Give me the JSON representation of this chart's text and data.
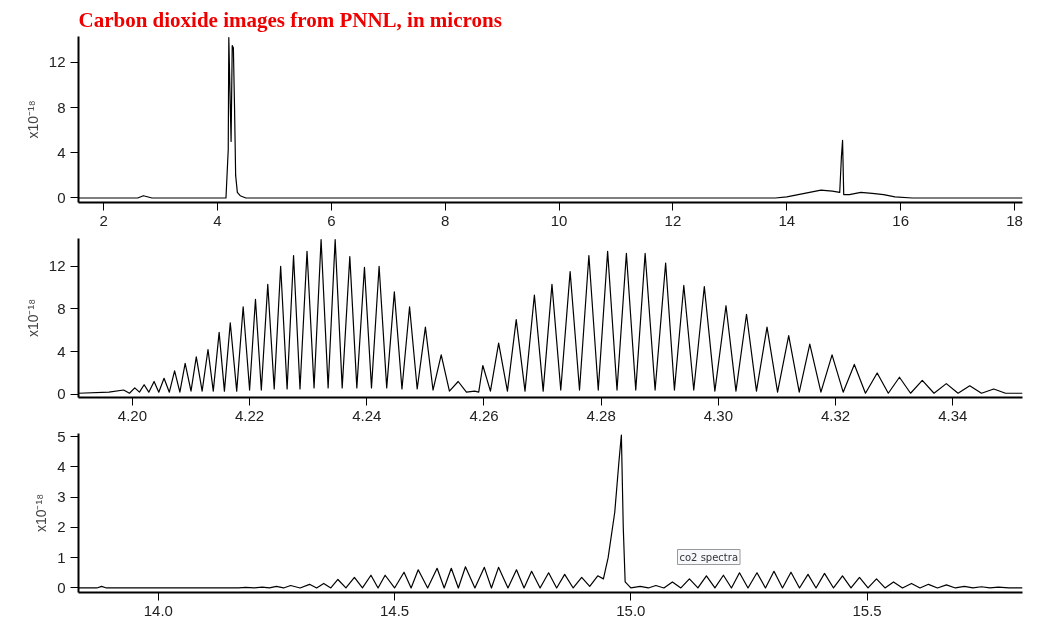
{
  "chart_data": [
    {
      "type": "line",
      "title": "Carbon dioxide images from PNNL, in microns",
      "ylabel": "x10⁻¹⁸",
      "xlim": [
        1.56,
        18.14
      ],
      "ylim": [
        -0.4,
        14.3
      ],
      "xticks": [
        2,
        4,
        6,
        8,
        10,
        12,
        14,
        16,
        18
      ],
      "yticks": [
        0,
        4,
        8,
        12
      ],
      "grid": false,
      "marker": "none",
      "line_style": "solid",
      "series": [
        {
          "color": "#000000",
          "x": [
            1.56,
            2.6,
            2.7,
            2.85,
            4.15,
            4.19,
            4.2,
            4.22,
            4.24,
            4.26,
            4.28,
            4.3,
            4.32,
            4.35,
            4.4,
            4.5,
            13.8,
            14.0,
            14.2,
            14.4,
            14.6,
            14.8,
            14.93,
            14.96,
            14.98,
            15.0,
            15.1,
            15.3,
            15.5,
            15.7,
            15.9,
            16.2,
            16.5,
            18.14
          ],
          "values": [
            0,
            0,
            0.2,
            0,
            0,
            4.3,
            14.2,
            9.5,
            5,
            13.5,
            13.3,
            8.2,
            2.0,
            0.5,
            0.2,
            0,
            0,
            0.1,
            0.3,
            0.5,
            0.7,
            0.6,
            0.5,
            3.7,
            5.1,
            0.3,
            0.3,
            0.5,
            0.4,
            0.3,
            0.1,
            0,
            0,
            0
          ]
        }
      ]
    },
    {
      "type": "line",
      "ylabel": "x10⁻¹⁸",
      "xlim": [
        4.1908,
        4.3519
      ],
      "ylim": [
        -0.3,
        14.6
      ],
      "xticks": [
        {
          "value": 4.2,
          "label": "4.20"
        },
        4.22,
        4.24,
        4.26,
        4.28,
        {
          "value": 4.3,
          "label": "4.30"
        },
        4.32,
        4.34
      ],
      "yticks": [
        0,
        4,
        8,
        12
      ],
      "grid": false,
      "marker": "none",
      "line_style": "solid",
      "series": [
        {
          "color": "#000000",
          "x": [
            4.1908,
            4.196,
            4.1985,
            4.1995,
            4.2004,
            4.2012,
            4.202,
            4.2028,
            4.2037,
            4.2045,
            4.2054,
            4.2063,
            4.2072,
            4.2081,
            4.209,
            4.21,
            4.2109,
            4.2119,
            4.2129,
            4.2138,
            4.2148,
            4.2157,
            4.2167,
            4.2178,
            4.2189,
            4.22,
            4.221,
            4.222,
            4.2231,
            4.2242,
            4.2253,
            4.2264,
            4.2275,
            4.2286,
            4.2298,
            4.231,
            4.2322,
            4.2334,
            4.2346,
            4.2358,
            4.2371,
            4.2383,
            4.2396,
            4.2408,
            4.2421,
            4.2434,
            4.2447,
            4.246,
            4.2473,
            4.2486,
            4.25,
            4.2513,
            4.2527,
            4.2541,
            4.2556,
            4.257,
            4.2584,
            4.2591,
            4.2598,
            4.2611,
            4.2625,
            4.264,
            4.2655,
            4.267,
            4.2686,
            4.2701,
            4.2716,
            4.2731,
            4.2747,
            4.2763,
            4.2779,
            4.2795,
            4.2811,
            4.2827,
            4.2843,
            4.2859,
            4.2875,
            4.2892,
            4.291,
            4.2925,
            4.2941,
            4.2958,
            4.2976,
            4.2994,
            4.3013,
            4.303,
            4.3048,
            4.3065,
            4.3083,
            4.3101,
            4.312,
            4.3138,
            4.3156,
            4.3175,
            4.3194,
            4.3213,
            4.3232,
            4.3251,
            4.3271,
            4.329,
            4.3309,
            4.3328,
            4.3348,
            4.3368,
            4.3389,
            4.3409,
            4.3429,
            4.3449,
            4.347,
            4.349,
            4.3519
          ],
          "values": [
            0.1,
            0.2,
            0.4,
            0.1,
            0.6,
            0.2,
            0.9,
            0.2,
            1.2,
            0.2,
            1.5,
            0.2,
            2.2,
            0.2,
            2.9,
            0.3,
            3.5,
            0.3,
            4.2,
            0.3,
            5.8,
            0.3,
            6.7,
            0.3,
            8.2,
            0.4,
            8.9,
            0.4,
            10.3,
            0.5,
            12.0,
            0.5,
            13.0,
            0.5,
            13.4,
            0.6,
            14.5,
            0.6,
            14.5,
            0.6,
            12.9,
            0.6,
            11.9,
            0.6,
            12.0,
            0.6,
            9.6,
            0.5,
            8.2,
            0.5,
            6.3,
            0.4,
            3.7,
            0.3,
            1.2,
            0.2,
            0.3,
            0.2,
            2.7,
            0.3,
            4.8,
            0.3,
            7.0,
            0.3,
            9.3,
            0.3,
            10.3,
            0.4,
            11.5,
            0.4,
            13.0,
            0.4,
            13.4,
            0.4,
            13.2,
            0.4,
            13.2,
            0.4,
            12.3,
            0.4,
            10.2,
            0.4,
            10.1,
            0.3,
            8.3,
            0.3,
            7.5,
            0.3,
            6.3,
            0.2,
            5.5,
            0.2,
            4.7,
            0.2,
            3.7,
            0.2,
            2.8,
            0.1,
            2.0,
            0.1,
            1.6,
            0.1,
            1.3,
            0.1,
            1.0,
            0.1,
            0.8,
            0.1,
            0.5,
            0.1,
            0.1
          ]
        }
      ]
    },
    {
      "type": "line",
      "ylabel": "x10⁻¹⁸",
      "xlim": [
        13.831,
        15.829
      ],
      "ylim": [
        -0.15,
        5.1
      ],
      "xticks": [
        {
          "value": 14,
          "label": "14.0"
        },
        14.5,
        {
          "value": 15,
          "label": "15.0"
        },
        15.5
      ],
      "yticks": [
        0,
        1,
        2,
        3,
        4,
        5
      ],
      "grid": false,
      "marker": "none",
      "line_style": "solid",
      "annotations": [
        "co2 spectra"
      ],
      "series": [
        {
          "color": "#000000",
          "x": [
            13.831,
            13.87,
            13.88,
            13.89,
            14.17,
            14.185,
            14.203,
            14.22,
            14.235,
            14.25,
            14.265,
            14.28,
            14.3,
            14.32,
            14.335,
            14.35,
            14.365,
            14.38,
            14.397,
            14.415,
            14.432,
            14.45,
            14.465,
            14.48,
            14.5,
            14.52,
            14.535,
            14.55,
            14.57,
            14.59,
            14.605,
            14.62,
            14.635,
            14.65,
            14.67,
            14.69,
            14.705,
            14.72,
            14.74,
            14.758,
            14.774,
            14.79,
            14.808,
            14.826,
            14.843,
            14.86,
            14.878,
            14.896,
            14.913,
            14.93,
            14.942,
            14.952,
            14.966,
            14.975,
            14.98,
            14.984,
            14.988,
            15.0,
            15.02,
            15.037,
            15.053,
            15.07,
            15.088,
            15.106,
            15.124,
            15.142,
            15.16,
            15.178,
            15.196,
            15.213,
            15.23,
            15.248,
            15.267,
            15.285,
            15.303,
            15.321,
            15.339,
            15.357,
            15.375,
            15.392,
            15.41,
            15.429,
            15.448,
            15.466,
            15.484,
            15.502,
            15.52,
            15.538,
            15.556,
            15.575,
            15.594,
            15.612,
            15.63,
            15.649,
            15.668,
            15.687,
            15.706,
            15.724,
            15.742,
            15.76,
            15.778,
            15.8,
            15.829
          ],
          "values": [
            0,
            0,
            0.05,
            0,
            0,
            0.02,
            0,
            0.03,
            0,
            0.05,
            0,
            0.08,
            0,
            0.12,
            0,
            0.15,
            0,
            0.28,
            0,
            0.35,
            0,
            0.42,
            0,
            0.42,
            0,
            0.52,
            0,
            0.6,
            0,
            0.65,
            0,
            0.65,
            0,
            0.7,
            0,
            0.68,
            0,
            0.68,
            0,
            0.6,
            0,
            0.55,
            0,
            0.5,
            0,
            0.45,
            0,
            0.35,
            0.05,
            0.4,
            0.3,
            1.0,
            2.5,
            4.2,
            5.05,
            2.0,
            0.2,
            0,
            0.05,
            0,
            0.08,
            0,
            0.2,
            0,
            0.3,
            0,
            0.4,
            0,
            0.42,
            0,
            0.5,
            0,
            0.5,
            0,
            0.55,
            0,
            0.52,
            0,
            0.45,
            0,
            0.48,
            0,
            0.4,
            0,
            0.35,
            0,
            0.3,
            0,
            0.2,
            0,
            0.15,
            0,
            0.12,
            0,
            0.1,
            0,
            0.05,
            0,
            0.04,
            0,
            0.03,
            0,
            0
          ]
        }
      ]
    }
  ]
}
